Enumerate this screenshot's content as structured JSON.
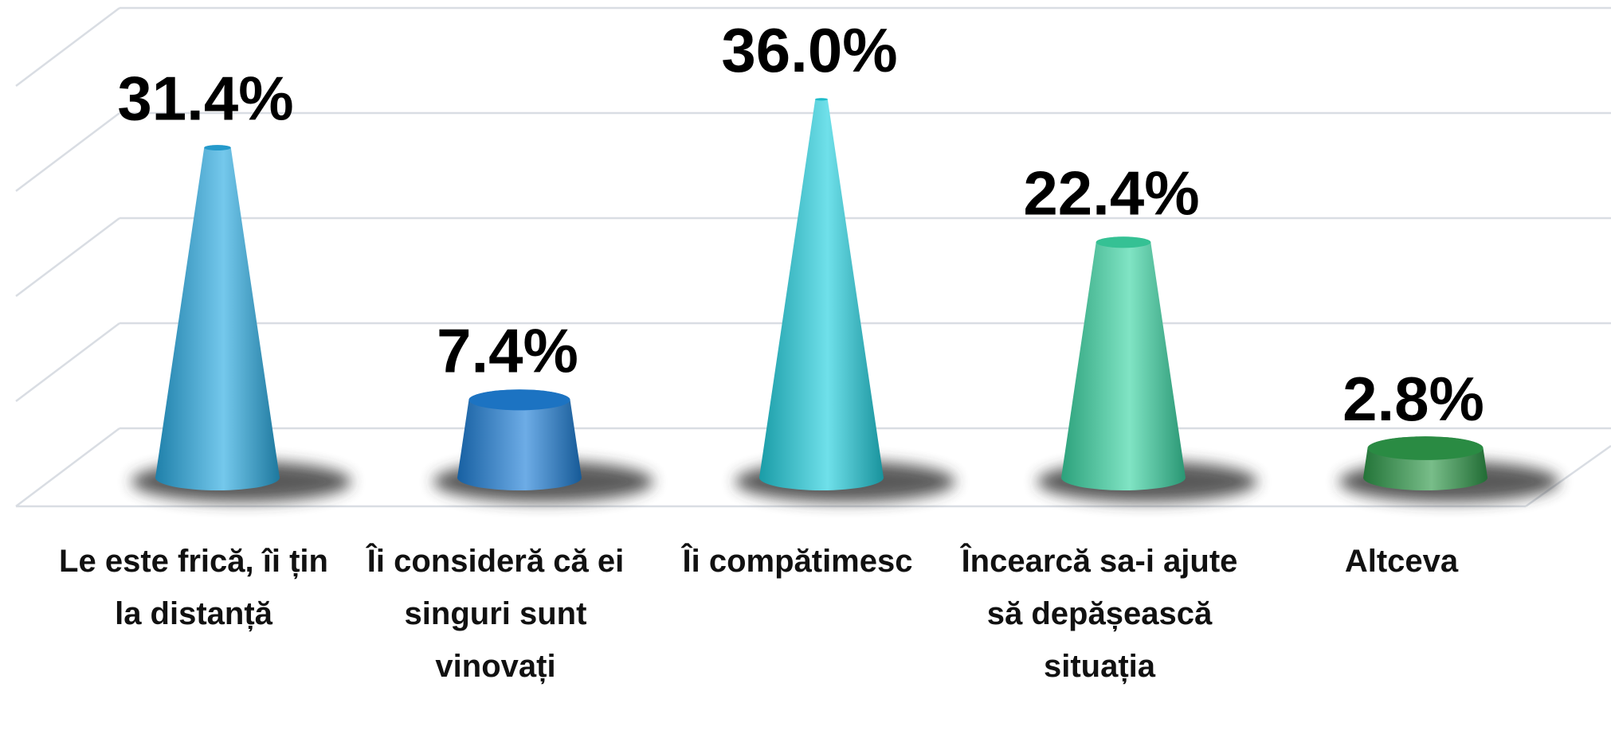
{
  "chart_data": {
    "type": "cone",
    "categories": [
      "Le este frică, îi țin la distanță",
      "Îi consideră că ei singuri sunt vinovați",
      "Îi compătimesc",
      "Încearcă sa-i ajute să depășească situația",
      "Altceva"
    ],
    "values": [
      31.4,
      7.4,
      36.0,
      22.4,
      2.8
    ],
    "value_labels": [
      "31.4%",
      "7.4%",
      "36.0%",
      "22.4%",
      "2.8%"
    ],
    "colors": [
      "#29abe2",
      "#1f80d8",
      "#22d0df",
      "#3bd6a4",
      "#2f9a4a"
    ],
    "ylim": [
      0,
      40
    ],
    "yticks": [
      0,
      10,
      20,
      30,
      40
    ],
    "grid": true
  }
}
